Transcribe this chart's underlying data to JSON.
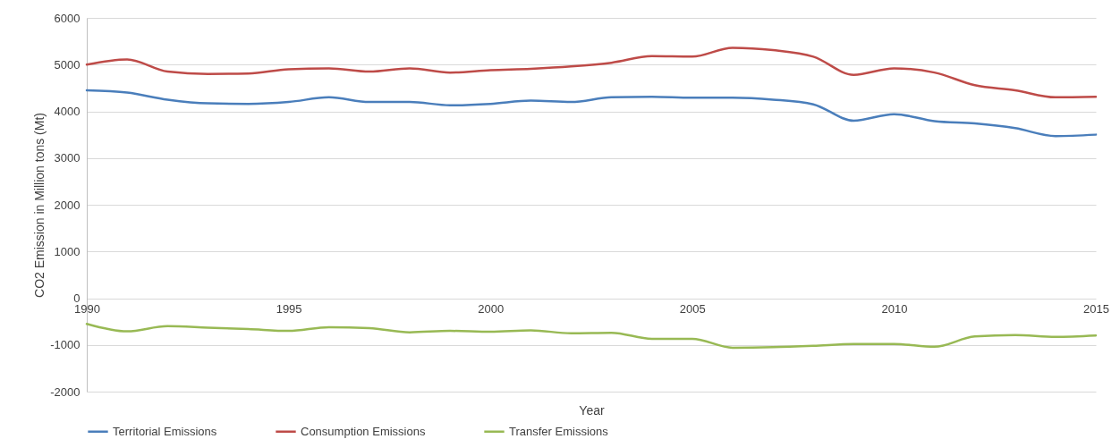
{
  "chart_data": {
    "type": "line",
    "xlabel": "Year",
    "ylabel": "CO2 Emission in Million tons (Mt)",
    "x": [
      1990,
      1991,
      1992,
      1993,
      1994,
      1995,
      1996,
      1997,
      1998,
      1999,
      2000,
      2001,
      2002,
      2003,
      2004,
      2005,
      2006,
      2007,
      2008,
      2009,
      2010,
      2011,
      2012,
      2013,
      2014,
      2015
    ],
    "series": [
      {
        "name": "Territorial Emissions",
        "color": "#4a7ebb",
        "values": [
          4450,
          4400,
          4250,
          4170,
          4160,
          4200,
          4300,
          4200,
          4200,
          4130,
          4160,
          4230,
          4200,
          4300,
          4310,
          4290,
          4290,
          4250,
          4150,
          3800,
          3940,
          3790,
          3740,
          3640,
          3470,
          3500
        ]
      },
      {
        "name": "Consumption Emissions",
        "color": "#be4b48",
        "values": [
          5000,
          5110,
          4850,
          4800,
          4810,
          4900,
          4920,
          4850,
          4920,
          4830,
          4880,
          4910,
          4960,
          5040,
          5180,
          5170,
          5360,
          5310,
          5170,
          4780,
          4920,
          4830,
          4560,
          4450,
          4300,
          4310
        ]
      },
      {
        "name": "Transfer Emissions",
        "color": "#98b954",
        "values": [
          -550,
          -710,
          -600,
          -630,
          -660,
          -700,
          -620,
          -640,
          -730,
          -700,
          -720,
          -690,
          -750,
          -740,
          -870,
          -870,
          -1060,
          -1050,
          -1020,
          -980,
          -980,
          -1040,
          -820,
          -790,
          -830,
          -800
        ]
      }
    ],
    "xlim": [
      1990,
      2015
    ],
    "xticks": [
      1990,
      1995,
      2000,
      2005,
      2010,
      2015
    ],
    "ylim": [
      -2000,
      6000
    ],
    "yticks": [
      -2000,
      -1000,
      0,
      1000,
      2000,
      3000,
      4000,
      5000,
      6000
    ],
    "grid": "y",
    "legend": "bottom",
    "marker": "none",
    "line_style": "solid"
  }
}
